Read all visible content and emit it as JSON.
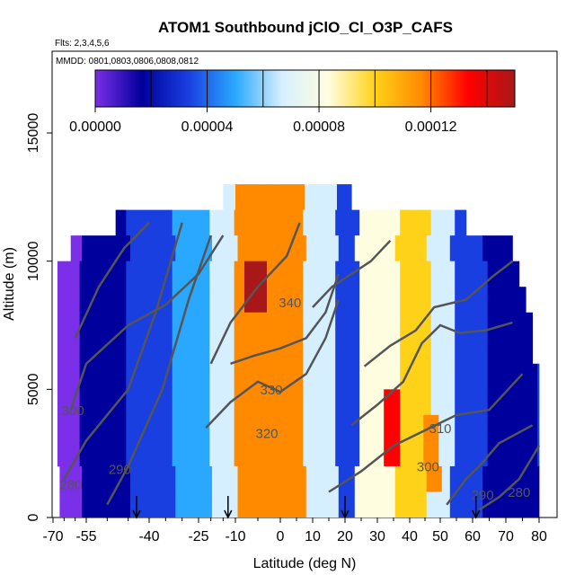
{
  "chart_data": {
    "type": "heatmap",
    "title": "ATOM1 Southbound jClO_Cl_O3P_CAFS",
    "subtitle_flights": "Flts: 2,3,4,5,6",
    "subtitle_dates": "MMDD: 0801,0803,0806,0808,0812",
    "xlabel": "Latitude (deg N)",
    "ylabel": "Altitude (m)",
    "xlim": [
      -70,
      80
    ],
    "ylim": [
      0,
      17500
    ],
    "x_ticks": [
      -70,
      -55,
      -40,
      -25,
      -10,
      0,
      10,
      20,
      30,
      40,
      50,
      60,
      70,
      80
    ],
    "y_ticks": [
      0,
      5000,
      10000,
      15000
    ],
    "colorbar": {
      "range": [
        0,
        0.00015
      ],
      "ticks": [
        "0.00000",
        "0.00004",
        "0.00008",
        "0.00012"
      ],
      "tick_values": [
        0,
        4e-05,
        8e-05,
        0.00012
      ],
      "boundaries": [
        2e-05,
        4e-05,
        6e-05,
        8e-05,
        0.0001,
        0.00012,
        0.00014
      ],
      "colors": [
        "#7b2fe8",
        "#00009c",
        "#1a3fe0",
        "#2aa8ff",
        "#d6efff",
        "#fffde0",
        "#ffd21a",
        "#ff8a00",
        "#ff0000",
        "#a81818"
      ]
    },
    "cross_section_rows": [
      {
        "alt": 12500,
        "lat_min": -15,
        "lat_max": 22,
        "level": 5e-05
      },
      {
        "alt": 11500,
        "lat_min": -48,
        "lat_max": 58,
        "level": 5e-05
      },
      {
        "alt": 10500,
        "lat_min": -62,
        "lat_max": 72,
        "level": 4e-05
      },
      {
        "alt": 9500,
        "lat_min": -68,
        "lat_max": 74,
        "level": 4e-05
      },
      {
        "alt": 8500,
        "lat_min": -68,
        "lat_max": 76,
        "level": 4e-05
      },
      {
        "alt": 7500,
        "lat_min": -68,
        "lat_max": 78,
        "level": 4e-05
      },
      {
        "alt": 6500,
        "lat_min": -68,
        "lat_max": 78,
        "level": 4e-05
      },
      {
        "alt": 5500,
        "lat_min": -68,
        "lat_max": 80,
        "level": 4e-05
      },
      {
        "alt": 4500,
        "lat_min": -68,
        "lat_max": 80,
        "level": 4e-05
      },
      {
        "alt": 3500,
        "lat_min": -68,
        "lat_max": 80,
        "level": 4e-05
      },
      {
        "alt": 2500,
        "lat_min": -68,
        "lat_max": 80,
        "level": 4e-05
      },
      {
        "alt": 1500,
        "lat_min": -67,
        "lat_max": 80,
        "level": 4e-05
      },
      {
        "alt": 500,
        "lat_min": -67,
        "lat_max": 80,
        "level": 4e-05
      }
    ],
    "bands": [
      {
        "lat_min": -67,
        "lat_max": -58,
        "level": 1e-05
      },
      {
        "lat_min": -58,
        "lat_max": -45,
        "level": 2e-05
      },
      {
        "lat_min": -45,
        "lat_max": -32,
        "level": 3e-05
      },
      {
        "lat_min": -32,
        "lat_max": -20,
        "level": 5e-05
      },
      {
        "lat_min": -20,
        "lat_max": -10,
        "level": 7e-05
      },
      {
        "lat_min": -10,
        "lat_max": 8,
        "level": 0.00011
      },
      {
        "lat_min": 8,
        "lat_max": 18,
        "level": 6e-05
      },
      {
        "lat_min": 18,
        "lat_max": 24,
        "level": 3e-05
      },
      {
        "lat_min": 24,
        "lat_max": 36,
        "level": 8e-05
      },
      {
        "lat_min": 36,
        "lat_max": 46,
        "level": 9e-05
      },
      {
        "lat_min": 46,
        "lat_max": 54,
        "level": 6e-05
      },
      {
        "lat_min": 54,
        "lat_max": 64,
        "level": 3e-05
      },
      {
        "lat_min": 64,
        "lat_max": 80,
        "level": 2e-05
      }
    ],
    "hotspots": [
      {
        "lat": -4.5,
        "alt_min": 8000,
        "alt_max": 9500,
        "level": 0.00014
      },
      {
        "lat": 35,
        "alt_min": 2000,
        "alt_max": 5000,
        "level": 0.00013
      },
      {
        "lat": 48,
        "alt_min": 1000,
        "alt_max": 3500,
        "level": 0.00011
      }
    ],
    "contours": [
      {
        "label": "280",
        "points": [
          [
            -65,
            1500
          ],
          [
            -55,
            3000
          ],
          [
            -45,
            5000
          ],
          [
            -38,
            8000
          ],
          [
            -30,
            11500
          ]
        ],
        "label_at": [
          -62,
          1100
        ]
      },
      {
        "label": "290",
        "points": [
          [
            -50,
            500
          ],
          [
            -45,
            2000
          ],
          [
            -36,
            5000
          ],
          [
            -28,
            8500
          ],
          [
            -20,
            11000
          ]
        ],
        "label_at": [
          -47,
          1700
        ]
      },
      {
        "label": "300",
        "points": [
          [
            -62,
            4200
          ],
          [
            -55,
            6000
          ],
          [
            -45,
            7500
          ],
          [
            -35,
            8300
          ],
          [
            -25,
            9500
          ],
          [
            -15,
            11000
          ]
        ],
        "label_at": [
          -61,
          4000
        ]
      },
      {
        "label": "310",
        "points": [
          [
            -20,
            6000
          ],
          [
            -12,
            7600
          ],
          [
            -5,
            9000
          ],
          [
            2,
            10200
          ],
          [
            6,
            11500
          ]
        ],
        "label_at": [
          50,
          3300
        ]
      },
      {
        "label": "320",
        "points": [
          [
            -22,
            3500
          ],
          [
            -12,
            4500
          ],
          [
            -5,
            5300
          ],
          [
            0,
            4900
          ],
          [
            8,
            5600
          ],
          [
            14,
            7000
          ],
          [
            18,
            8500
          ]
        ],
        "label_at": [
          -3,
          3100
        ]
      },
      {
        "label": "330",
        "points": [
          [
            -12,
            6000
          ],
          [
            -6,
            6300
          ],
          [
            0,
            6600
          ],
          [
            8,
            7000
          ],
          [
            14,
            8000
          ],
          [
            18,
            9500
          ]
        ],
        "label_at": [
          -2,
          4800
        ]
      },
      {
        "label": "340",
        "points": [
          [
            10,
            8200
          ],
          [
            16,
            9000
          ],
          [
            22,
            9500
          ],
          [
            28,
            10000
          ],
          [
            34,
            10800
          ]
        ],
        "label_at": [
          3,
          8200
        ]
      },
      {
        "label": "300",
        "points": [
          [
            15,
            1000
          ],
          [
            25,
            1800
          ],
          [
            35,
            2800
          ],
          [
            45,
            3400
          ],
          [
            55,
            4000
          ],
          [
            65,
            4200
          ],
          [
            75,
            5600
          ]
        ],
        "label_at": [
          46,
          1800
        ]
      },
      {
        "label": "290",
        "points": [
          [
            52,
            500
          ],
          [
            58,
            1500
          ],
          [
            62,
            2000
          ],
          [
            68,
            2900
          ],
          [
            78,
            3600
          ]
        ],
        "label_at": [
          63,
          700
        ]
      },
      {
        "label": "280",
        "points": [
          [
            62,
            300
          ],
          [
            68,
            800
          ],
          [
            74,
            1500
          ],
          [
            80,
            2800
          ]
        ],
        "label_at": [
          74,
          800
        ]
      },
      {
        "label": "",
        "points": [
          [
            22,
            3600
          ],
          [
            30,
            4400
          ],
          [
            38,
            5300
          ],
          [
            44,
            6800
          ],
          [
            50,
            7500
          ],
          [
            56,
            7200
          ],
          [
            64,
            7300
          ],
          [
            72,
            7600
          ]
        ],
        "label_at": null
      },
      {
        "label": "",
        "points": [
          [
            26,
            5900
          ],
          [
            34,
            6700
          ],
          [
            42,
            7300
          ],
          [
            48,
            8200
          ],
          [
            58,
            8500
          ],
          [
            66,
            9400
          ],
          [
            72,
            10000
          ]
        ],
        "label_at": null
      },
      {
        "label": "",
        "points": [
          [
            -60,
            7000
          ],
          [
            -52,
            9000
          ],
          [
            -46,
            10500
          ],
          [
            -40,
            11500
          ]
        ],
        "label_at": null
      }
    ],
    "flight_arrows": [
      -43,
      -13,
      20,
      61
    ]
  }
}
